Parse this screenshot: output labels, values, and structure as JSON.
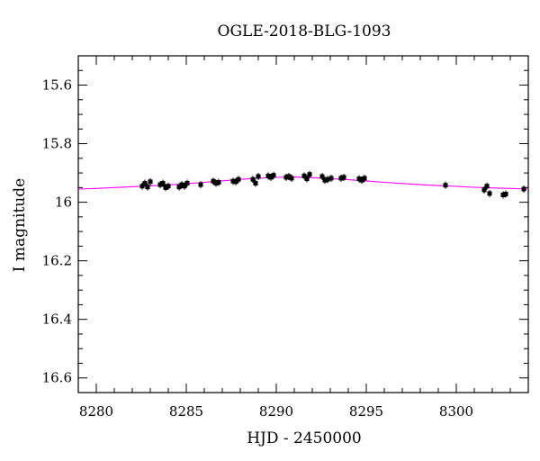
{
  "chart_data": {
    "type": "scatter",
    "title": "OGLE-2018-BLG-1093",
    "xlabel": "HJD - 2450000",
    "ylabel": "I magnitude",
    "xlim": [
      8279,
      8304
    ],
    "ylim": [
      15.5,
      16.65
    ],
    "y_inverted": true,
    "grid": false,
    "x_ticks": [
      8280,
      8285,
      8290,
      8295,
      8300
    ],
    "y_ticks": [
      15.6,
      15.8,
      16,
      16.2,
      16.4,
      16.6
    ],
    "x_tick_labels": [
      "8280",
      "8285",
      "8290",
      "8295",
      "8300"
    ],
    "y_tick_labels": [
      "15.6",
      "15.8",
      "16",
      "16.2",
      "16.4",
      "16.6"
    ],
    "point_color": "#000000",
    "model_color": "#ff00ff",
    "series": [
      {
        "type": "scatter",
        "x": [
          8282.55,
          8282.7,
          8282.85,
          8283.0,
          8283.55,
          8283.7,
          8283.85,
          8284.0,
          8284.6,
          8284.75,
          8284.9,
          8285.05,
          8285.8,
          8286.5,
          8286.65,
          8286.8,
          8287.6,
          8287.75,
          8287.9,
          8288.7,
          8288.85,
          8289.0,
          8289.55,
          8289.7,
          8289.85,
          8290.55,
          8290.7,
          8290.85,
          8291.55,
          8291.7,
          8291.85,
          8292.55,
          8292.7,
          8292.85,
          8293.05,
          8293.6,
          8293.75,
          8294.6,
          8294.75,
          8294.9,
          8299.4,
          8301.55,
          8301.7,
          8301.85,
          8302.6,
          8302.75,
          8303.75
        ],
        "y": [
          15.945,
          15.935,
          15.948,
          15.93,
          15.94,
          15.935,
          15.95,
          15.945,
          15.948,
          15.94,
          15.945,
          15.935,
          15.94,
          15.928,
          15.935,
          15.932,
          15.928,
          15.93,
          15.922,
          15.922,
          15.935,
          15.912,
          15.91,
          15.915,
          15.908,
          15.915,
          15.912,
          15.918,
          15.91,
          15.92,
          15.905,
          15.912,
          15.925,
          15.922,
          15.918,
          15.918,
          15.915,
          15.92,
          15.925,
          15.918,
          15.942,
          15.958,
          15.945,
          15.97,
          15.975,
          15.972,
          15.955
        ]
      },
      {
        "type": "line",
        "x": [
          8279,
          8280,
          8281,
          8282,
          8283,
          8284,
          8285,
          8286,
          8287,
          8288,
          8289,
          8290,
          8291,
          8292,
          8293,
          8294,
          8295,
          8296,
          8297,
          8298,
          8299,
          8300,
          8301,
          8302,
          8303,
          8304
        ],
        "y": [
          15.955,
          15.953,
          15.95,
          15.947,
          15.944,
          15.941,
          15.937,
          15.932,
          15.927,
          15.922,
          15.918,
          15.915,
          15.914,
          15.916,
          15.919,
          15.923,
          15.927,
          15.932,
          15.936,
          15.94,
          15.943,
          15.946,
          15.949,
          15.951,
          15.953,
          15.955
        ]
      }
    ]
  }
}
